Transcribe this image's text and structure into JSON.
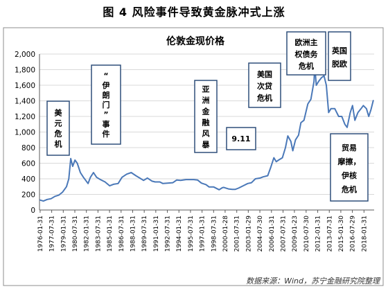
{
  "figure_title": "图 4   风险事件导致黄金脉冲式上涨",
  "source": "数据来源：Wind，苏宁金融研究院整理",
  "chart_data": {
    "type": "line",
    "title": "伦敦金现价格",
    "xlabel": "",
    "ylabel": "",
    "ylim": [
      0,
      2000
    ],
    "grid": true,
    "legend": "none",
    "line_color": "#4a78b8",
    "y_ticks": [
      "0",
      "200",
      "400",
      "600",
      "800",
      "1,000",
      "1,200",
      "1,400",
      "1,600",
      "1,800",
      "2,000"
    ],
    "x_ticks": [
      "1976-01-31",
      "1977-07-31",
      "1979-01-31",
      "1980-07-31",
      "1982-01-31",
      "1983-07-31",
      "1985-01-31",
      "1986-07-31",
      "1988-01-31",
      "1989-07-31",
      "1991-01-31",
      "1992-07-31",
      "1994-01-31",
      "1995-07-31",
      "1997-01-31",
      "1998-07-31",
      "2000-01-28",
      "2001-07-31",
      "2003-01-29",
      "2004-07-30",
      "2006-01-31",
      "2007-07-31",
      "2009-01-23",
      "2010-07-30",
      "2012-01-31",
      "2013-07-31",
      "2015-01-30",
      "2016-07-29",
      "2018-01-31"
    ],
    "x_start_year": 1976.0,
    "x_end_year": 2019.4,
    "series": [
      {
        "x": [
          1976.0,
          1976.5,
          1977.0,
          1977.5,
          1978.0,
          1978.5,
          1979.0,
          1979.5,
          1979.8,
          1980.05,
          1980.3,
          1980.6,
          1980.9,
          1981.3,
          1981.7,
          1982.3,
          1982.6,
          1983.0,
          1983.4,
          1983.9,
          1984.5,
          1985.1,
          1985.6,
          1986.2,
          1986.7,
          1987.3,
          1987.9,
          1988.5,
          1989.0,
          1989.5,
          1990.0,
          1990.6,
          1991.0,
          1991.6,
          1992.0,
          1992.6,
          1993.3,
          1993.8,
          1994.3,
          1995.0,
          1996.0,
          1996.5,
          1997.0,
          1997.6,
          1998.0,
          1998.6,
          1999.3,
          1999.7,
          1999.9,
          2000.5,
          2001.0,
          2001.4,
          2001.8,
          2002.5,
          2003.0,
          2003.5,
          2004.0,
          2004.6,
          2005.0,
          2005.6,
          2006.0,
          2006.4,
          2006.7,
          2007.0,
          2007.5,
          2007.9,
          2008.2,
          2008.6,
          2008.85,
          2009.2,
          2009.6,
          2009.9,
          2010.3,
          2010.8,
          2011.2,
          2011.6,
          2011.7,
          2011.9,
          2012.2,
          2012.6,
          2012.9,
          2013.2,
          2013.5,
          2013.8,
          2014.3,
          2014.8,
          2015.2,
          2015.6,
          2015.9,
          2016.3,
          2016.6,
          2016.9,
          2017.3,
          2017.7,
          2018.0,
          2018.4,
          2018.7,
          2019.0,
          2019.3
        ],
        "y": [
          130,
          115,
          135,
          145,
          175,
          190,
          230,
          300,
          400,
          660,
          560,
          640,
          600,
          480,
          420,
          340,
          420,
          480,
          420,
          390,
          360,
          310,
          330,
          340,
          420,
          460,
          480,
          440,
          410,
          380,
          410,
          370,
          360,
          360,
          340,
          345,
          350,
          385,
          380,
          390,
          390,
          385,
          345,
          325,
          295,
          295,
          260,
          285,
          290,
          270,
          265,
          265,
          280,
          315,
          340,
          350,
          400,
          410,
          425,
          440,
          550,
          670,
          620,
          640,
          670,
          800,
          950,
          880,
          760,
          900,
          960,
          1120,
          1150,
          1360,
          1420,
          1650,
          1850,
          1600,
          1650,
          1700,
          1720,
          1600,
          1250,
          1300,
          1300,
          1200,
          1200,
          1100,
          1060,
          1250,
          1340,
          1150,
          1250,
          1300,
          1340,
          1300,
          1200,
          1290,
          1410
        ]
      }
    ],
    "annotations": [
      {
        "lines": [
          "美",
          "元",
          "危",
          "机"
        ]
      },
      {
        "lines": [
          "“",
          "伊",
          "朗",
          "门",
          "”",
          "事",
          "件"
        ]
      },
      {
        "lines": [
          "亚",
          "洲",
          "金",
          "融",
          "风",
          "暴"
        ]
      },
      {
        "lines": [
          "9.11"
        ]
      },
      {
        "lines": [
          "美国",
          "次贷",
          "危机"
        ]
      },
      {
        "lines": [
          "欧洲主",
          "权债务",
          "危机"
        ]
      },
      {
        "lines": [
          "英国",
          "脱欧"
        ]
      },
      {
        "lines": [
          "贸易",
          "摩擦，",
          "伊核",
          "危机"
        ]
      }
    ]
  }
}
